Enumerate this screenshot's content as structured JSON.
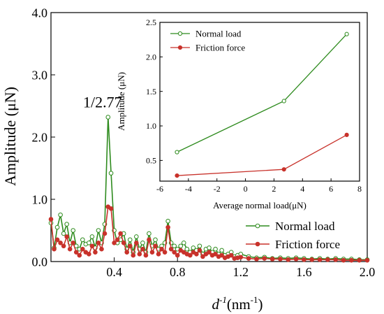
{
  "chart_data": [
    {
      "type": "line",
      "title": "",
      "xlabel_main": "d",
      "xlabel_sup": "-1",
      "xlabel_unit": "(nm",
      "xlabel_unit_sup": "-1",
      "xlabel_close": ")",
      "ylabel": "Amplitude (μN)",
      "xlim": [
        0.0,
        2.0
      ],
      "ylim": [
        0.0,
        4.0
      ],
      "x_ticks": [
        "0.4",
        "0.8",
        "1.2",
        "1.6",
        "2.0"
      ],
      "x_tick_values": [
        0.4,
        0.8,
        1.2,
        1.6,
        2.0
      ],
      "y_ticks": [
        "0.0",
        "1.0",
        "2.0",
        "3.0",
        "4.0"
      ],
      "y_tick_values": [
        0.0,
        1.0,
        2.0,
        3.0,
        4.0
      ],
      "annotation": {
        "text": "1/2.77",
        "x": 0.361,
        "y": 2.32
      },
      "legend_position": "bottom-right",
      "series": [
        {
          "name": "Normal load",
          "color": "#2e8b1e",
          "marker": "open-circle",
          "x": [
            0.0,
            0.02,
            0.04,
            0.06,
            0.08,
            0.1,
            0.12,
            0.14,
            0.16,
            0.18,
            0.2,
            0.22,
            0.24,
            0.26,
            0.28,
            0.3,
            0.32,
            0.34,
            0.361,
            0.38,
            0.4,
            0.42,
            0.44,
            0.46,
            0.48,
            0.5,
            0.52,
            0.54,
            0.56,
            0.58,
            0.6,
            0.62,
            0.64,
            0.66,
            0.68,
            0.7,
            0.72,
            0.74,
            0.76,
            0.78,
            0.8,
            0.82,
            0.84,
            0.86,
            0.88,
            0.9,
            0.92,
            0.94,
            0.96,
            0.98,
            1.0,
            1.02,
            1.04,
            1.06,
            1.08,
            1.1,
            1.12,
            1.14,
            1.16,
            1.18,
            1.2,
            1.25,
            1.3,
            1.35,
            1.4,
            1.45,
            1.5,
            1.55,
            1.6,
            1.65,
            1.7,
            1.75,
            1.8,
            1.85,
            1.9,
            1.95,
            2.0
          ],
          "y": [
            0.62,
            0.22,
            0.55,
            0.75,
            0.45,
            0.6,
            0.3,
            0.5,
            0.25,
            0.2,
            0.35,
            0.28,
            0.3,
            0.4,
            0.22,
            0.5,
            0.3,
            0.6,
            2.32,
            1.42,
            0.5,
            0.3,
            0.35,
            0.45,
            0.2,
            0.35,
            0.15,
            0.4,
            0.2,
            0.3,
            0.15,
            0.45,
            0.25,
            0.35,
            0.2,
            0.25,
            0.3,
            0.65,
            0.3,
            0.25,
            0.2,
            0.25,
            0.3,
            0.2,
            0.15,
            0.22,
            0.18,
            0.25,
            0.12,
            0.2,
            0.22,
            0.15,
            0.2,
            0.12,
            0.18,
            0.1,
            0.12,
            0.15,
            0.08,
            0.1,
            0.12,
            0.08,
            0.06,
            0.07,
            0.05,
            0.06,
            0.05,
            0.06,
            0.05,
            0.04,
            0.05,
            0.04,
            0.05,
            0.04,
            0.04,
            0.03,
            0.03
          ]
        },
        {
          "name": "Friction force",
          "color": "#c8322b",
          "marker": "filled-circle",
          "x": [
            0.0,
            0.02,
            0.04,
            0.06,
            0.08,
            0.1,
            0.12,
            0.14,
            0.16,
            0.18,
            0.2,
            0.22,
            0.24,
            0.26,
            0.28,
            0.3,
            0.32,
            0.34,
            0.361,
            0.38,
            0.4,
            0.42,
            0.44,
            0.46,
            0.48,
            0.5,
            0.52,
            0.54,
            0.56,
            0.58,
            0.6,
            0.62,
            0.64,
            0.66,
            0.68,
            0.7,
            0.72,
            0.74,
            0.76,
            0.78,
            0.8,
            0.82,
            0.84,
            0.86,
            0.88,
            0.9,
            0.92,
            0.94,
            0.96,
            0.98,
            1.0,
            1.02,
            1.04,
            1.06,
            1.08,
            1.1,
            1.12,
            1.14,
            1.16,
            1.18,
            1.2,
            1.25,
            1.3,
            1.35,
            1.4,
            1.45,
            1.5,
            1.55,
            1.6,
            1.65,
            1.7,
            1.75,
            1.8,
            1.85,
            1.9,
            1.95,
            2.0
          ],
          "y": [
            0.68,
            0.2,
            0.35,
            0.3,
            0.25,
            0.4,
            0.2,
            0.3,
            0.15,
            0.1,
            0.2,
            0.15,
            0.12,
            0.25,
            0.15,
            0.3,
            0.2,
            0.45,
            0.88,
            0.85,
            0.3,
            0.35,
            0.45,
            0.3,
            0.15,
            0.25,
            0.1,
            0.3,
            0.12,
            0.2,
            0.1,
            0.35,
            0.15,
            0.25,
            0.12,
            0.2,
            0.15,
            0.55,
            0.2,
            0.15,
            0.1,
            0.18,
            0.15,
            0.12,
            0.1,
            0.15,
            0.12,
            0.18,
            0.08,
            0.12,
            0.15,
            0.1,
            0.12,
            0.08,
            0.1,
            0.06,
            0.08,
            0.1,
            0.05,
            0.06,
            0.07,
            0.05,
            0.04,
            0.05,
            0.04,
            0.04,
            0.03,
            0.04,
            0.03,
            0.03,
            0.03,
            0.03,
            0.03,
            0.02,
            0.02,
            0.02,
            0.02
          ]
        }
      ]
    },
    {
      "type": "line",
      "title": "",
      "xlabel": "Average normal load(μN)",
      "ylabel": "Amplitude (μN)",
      "xlim": [
        -6,
        8
      ],
      "ylim": [
        0.2,
        2.5
      ],
      "x_ticks": [
        "-6",
        "-4",
        "-2",
        "0",
        "2",
        "4",
        "6",
        "8"
      ],
      "x_tick_values": [
        -6,
        -4,
        -2,
        0,
        2,
        4,
        6,
        8
      ],
      "y_ticks": [
        "0.5",
        "1.0",
        "1.5",
        "2.0",
        "2.5"
      ],
      "y_tick_values": [
        0.5,
        1.0,
        1.5,
        2.0,
        2.5
      ],
      "legend_position": "top-left",
      "series": [
        {
          "name": "Normal load",
          "color": "#2e8b1e",
          "marker": "open-circle",
          "x": [
            -4.8,
            2.7,
            7.1
          ],
          "y": [
            0.62,
            1.36,
            2.33
          ]
        },
        {
          "name": "Friction force",
          "color": "#c8322b",
          "marker": "filled-circle",
          "x": [
            -4.8,
            2.7,
            7.1
          ],
          "y": [
            0.28,
            0.37,
            0.87
          ]
        }
      ]
    }
  ]
}
